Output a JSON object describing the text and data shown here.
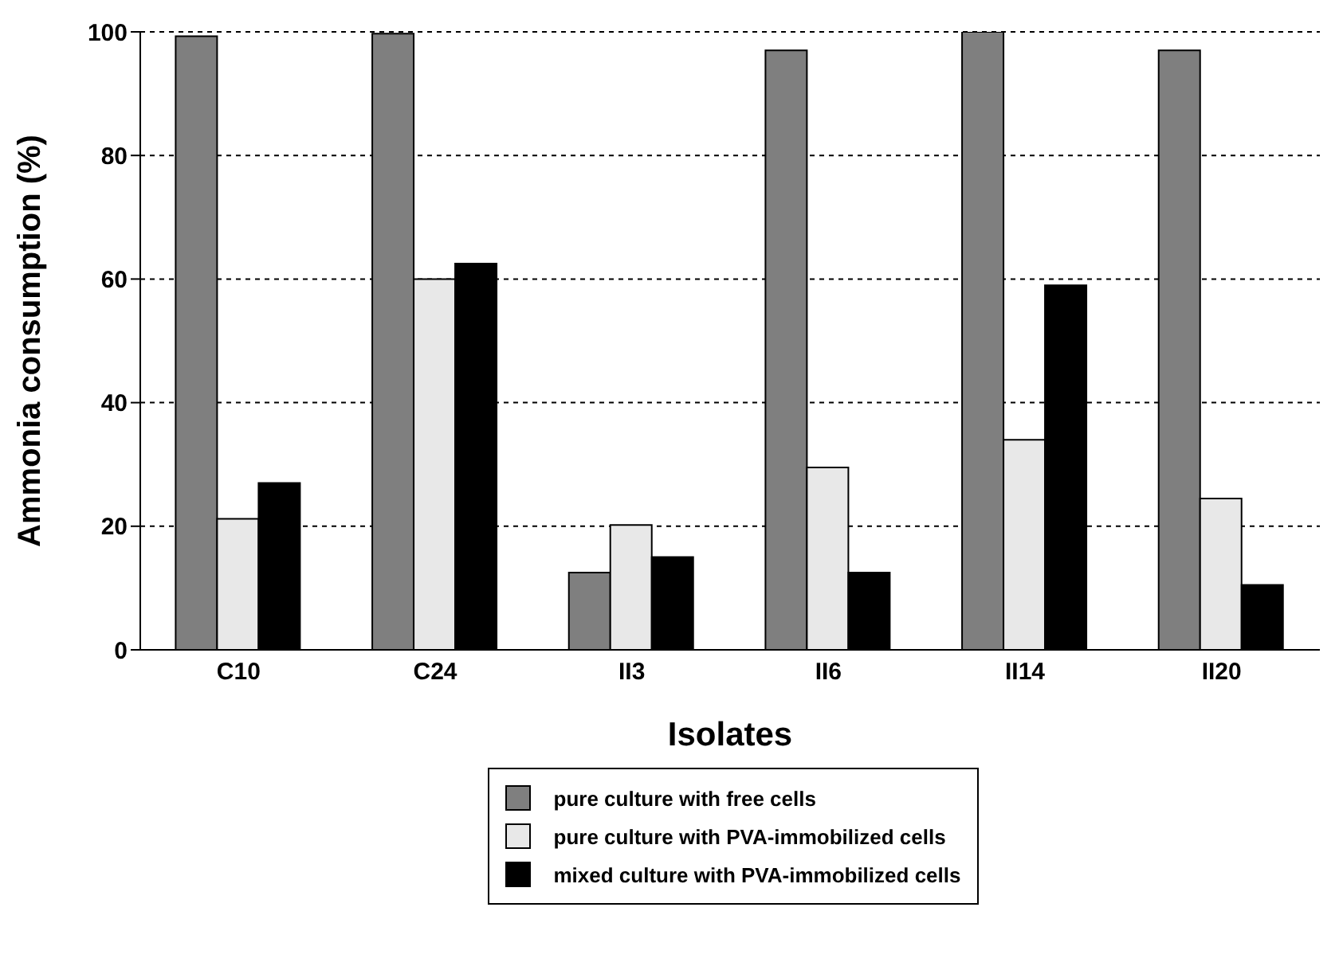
{
  "chart_data": {
    "type": "bar",
    "xlabel": "Isolates",
    "ylabel": "Ammonia consumption (%)",
    "categories": [
      "C10",
      "C24",
      "II3",
      "II6",
      "II14",
      "II20"
    ],
    "series": [
      {
        "name": "pure culture with free cells",
        "color": "#7f7f7f",
        "values": [
          99.3,
          99.7,
          12.5,
          97,
          100,
          97
        ]
      },
      {
        "name": "pure culture with PVA-immobilized cells",
        "color": "#e8e8e8",
        "values": [
          21.2,
          60,
          20.2,
          29.5,
          34,
          24.5
        ]
      },
      {
        "name": "mixed culture with PVA-immobilized cells",
        "color": "#000000",
        "values": [
          27,
          62.5,
          15,
          12.5,
          59,
          10.5
        ]
      }
    ],
    "ylim": [
      0,
      100
    ],
    "yticks": [
      0,
      20,
      40,
      60,
      80,
      100
    ],
    "grid": "y",
    "legend": "bottom"
  }
}
